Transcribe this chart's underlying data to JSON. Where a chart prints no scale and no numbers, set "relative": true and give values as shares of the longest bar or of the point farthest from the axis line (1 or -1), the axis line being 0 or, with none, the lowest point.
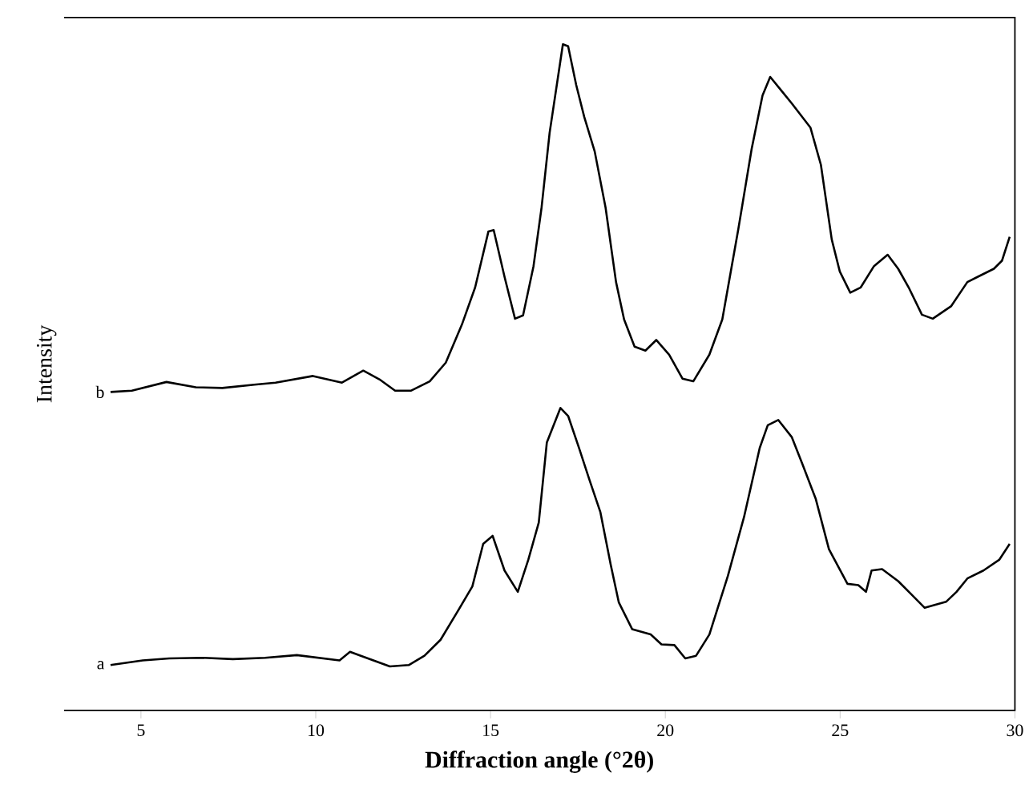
{
  "chart_data": {
    "type": "line",
    "relative": true,
    "xlabel": "Diffraction angle (°2θ)",
    "ylabel": "Intensity",
    "xlim": [
      2.8,
      30
    ],
    "xticks": [
      5,
      10,
      15,
      20,
      25,
      30
    ],
    "line_style": "solid",
    "series": [
      {
        "name": "b",
        "color": "#000000",
        "x": [
          4.13,
          4.74,
          5.73,
          6.57,
          7.33,
          8.24,
          8.85,
          9.92,
          10.75,
          11.36,
          11.82,
          12.27,
          12.73,
          13.26,
          13.72,
          14.18,
          14.56,
          14.94,
          15.09,
          15.4,
          15.7,
          15.93,
          16.23,
          16.46,
          16.69,
          17.07,
          17.22,
          17.45,
          17.68,
          17.98,
          18.29,
          18.59,
          18.82,
          19.12,
          19.43,
          19.74,
          20.11,
          20.49,
          20.8,
          21.26,
          21.63,
          22.09,
          22.47,
          22.78,
          23.0,
          23.31,
          23.62,
          24.15,
          24.45,
          24.76,
          24.99,
          25.29,
          25.59,
          25.97,
          26.36,
          26.66,
          26.96,
          27.34,
          27.65,
          28.18,
          28.64,
          28.94,
          29.4,
          29.63,
          29.85
        ],
        "values": [
          0.478,
          0.48,
          0.493,
          0.485,
          0.484,
          0.489,
          0.492,
          0.502,
          0.492,
          0.51,
          0.497,
          0.48,
          0.48,
          0.494,
          0.522,
          0.579,
          0.635,
          0.719,
          0.721,
          0.651,
          0.588,
          0.593,
          0.667,
          0.755,
          0.867,
          1,
          0.997,
          0.939,
          0.891,
          0.839,
          0.755,
          0.643,
          0.587,
          0.546,
          0.54,
          0.556,
          0.534,
          0.498,
          0.494,
          0.534,
          0.587,
          0.723,
          0.843,
          0.923,
          0.951,
          0.931,
          0.911,
          0.875,
          0.819,
          0.707,
          0.659,
          0.627,
          0.635,
          0.667,
          0.684,
          0.663,
          0.635,
          0.594,
          0.588,
          0.607,
          0.643,
          0.651,
          0.663,
          0.675,
          0.711
        ]
      },
      {
        "name": "a",
        "color": "#000000",
        "x": [
          4.13,
          5.05,
          5.81,
          6.72,
          7.63,
          8.55,
          9.46,
          10.68,
          10.98,
          11.29,
          12.12,
          12.66,
          13.11,
          13.57,
          14.03,
          14.48,
          14.79,
          15.06,
          15.4,
          15.78,
          16.08,
          16.38,
          16.61,
          17.0,
          17.22,
          17.53,
          17.83,
          18.14,
          18.44,
          18.67,
          19.05,
          19.58,
          19.89,
          20.26,
          20.57,
          20.88,
          21.26,
          21.79,
          22.25,
          22.7,
          22.93,
          23.23,
          23.62,
          23.92,
          24.3,
          24.68,
          25.21,
          25.52,
          25.74,
          25.9,
          26.2,
          26.66,
          27.04,
          27.42,
          28.03,
          28.33,
          28.64,
          29.1,
          29.55,
          29.85
        ],
        "values": [
          0.068,
          0.075,
          0.078,
          0.079,
          0.077,
          0.079,
          0.083,
          0.075,
          0.088,
          0.082,
          0.066,
          0.068,
          0.082,
          0.106,
          0.146,
          0.186,
          0.25,
          0.262,
          0.21,
          0.178,
          0.226,
          0.282,
          0.402,
          0.454,
          0.442,
          0.394,
          0.346,
          0.298,
          0.218,
          0.162,
          0.122,
          0.114,
          0.099,
          0.098,
          0.078,
          0.082,
          0.114,
          0.202,
          0.29,
          0.394,
          0.428,
          0.436,
          0.41,
          0.37,
          0.318,
          0.242,
          0.19,
          0.188,
          0.178,
          0.21,
          0.212,
          0.194,
          0.174,
          0.154,
          0.163,
          0.178,
          0.198,
          0.21,
          0.226,
          0.25
        ]
      }
    ]
  }
}
